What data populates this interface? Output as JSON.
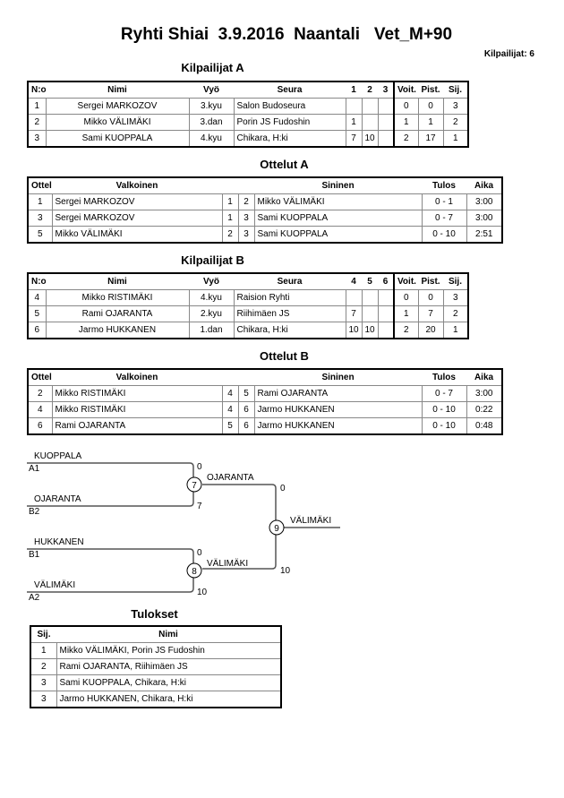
{
  "title": "Ryhti Shiai  3.9.2016  Naantali   Vet_M+90",
  "competitors_count": "Kilpailijat: 6",
  "pool_a": {
    "title": "Kilpailijat A",
    "headers": [
      "N:o",
      "Nimi",
      "Vyö",
      "Seura",
      "1",
      "2",
      "3",
      "Voit.",
      "Pist.",
      "Sij."
    ],
    "rows": [
      [
        "1",
        "Sergei MARKOZOV",
        "3.kyu",
        "Salon Budoseura",
        "",
        "",
        "",
        "0",
        "0",
        "3"
      ],
      [
        "2",
        "Mikko VÄLIMÄKI",
        "3.dan",
        "Porin JS Fudoshin",
        "1",
        "",
        "",
        "1",
        "1",
        "2"
      ],
      [
        "3",
        "Sami KUOPPALA",
        "4.kyu",
        "Chikara, H:ki",
        "7",
        "10",
        "",
        "2",
        "17",
        "1"
      ]
    ]
  },
  "matches_a": {
    "title": "Ottelut A",
    "headers": [
      "Ottelu",
      "Valkoinen",
      "",
      "",
      "Sininen",
      "Tulos",
      "Aika"
    ],
    "rows": [
      [
        "1",
        "Sergei MARKOZOV",
        "1",
        "2",
        "Mikko VÄLIMÄKI",
        "0 - 1",
        "3:00"
      ],
      [
        "3",
        "Sergei MARKOZOV",
        "1",
        "3",
        "Sami KUOPPALA",
        "0 - 7",
        "3:00"
      ],
      [
        "5",
        "Mikko VÄLIMÄKI",
        "2",
        "3",
        "Sami KUOPPALA",
        "0 - 10",
        "2:51"
      ]
    ]
  },
  "pool_b": {
    "title": "Kilpailijat B",
    "headers": [
      "N:o",
      "Nimi",
      "Vyö",
      "Seura",
      "4",
      "5",
      "6",
      "Voit.",
      "Pist.",
      "Sij."
    ],
    "rows": [
      [
        "4",
        "Mikko RISTIMÄKI",
        "4.kyu",
        "Raision Ryhti",
        "",
        "",
        "",
        "0",
        "0",
        "3"
      ],
      [
        "5",
        "Rami OJARANTA",
        "2.kyu",
        "Riihimäen JS",
        "7",
        "",
        "",
        "1",
        "7",
        "2"
      ],
      [
        "6",
        "Jarmo HUKKANEN",
        "1.dan",
        "Chikara, H:ki",
        "10",
        "10",
        "",
        "2",
        "20",
        "1"
      ]
    ]
  },
  "matches_b": {
    "title": "Ottelut B",
    "headers": [
      "Ottelu",
      "Valkoinen",
      "",
      "",
      "Sininen",
      "Tulos",
      "Aika"
    ],
    "rows": [
      [
        "2",
        "Mikko RISTIMÄKI",
        "4",
        "5",
        "Rami OJARANTA",
        "0 - 7",
        "3:00"
      ],
      [
        "4",
        "Mikko RISTIMÄKI",
        "4",
        "6",
        "Jarmo HUKKANEN",
        "0 - 10",
        "0:22"
      ],
      [
        "6",
        "Rami OJARANTA",
        "5",
        "6",
        "Jarmo HUKKANEN",
        "0 - 10",
        "0:48"
      ]
    ]
  },
  "bracket": {
    "s1_name": "KUOPPALA",
    "s1_seed": "A1",
    "s1_score": "0",
    "s2_name": "OJARANTA",
    "s2_seed": "B2",
    "s2_score": "7",
    "s3_name": "HUKKANEN",
    "s3_seed": "B1",
    "s3_score": "0",
    "s4_name": "VÄLIMÄKI",
    "s4_seed": "A2",
    "s4_score": "10",
    "m7": "7",
    "m8": "8",
    "m9": "9",
    "w7": "OJARANTA",
    "w7_score": "0",
    "w8": "VÄLIMÄKI",
    "w8_score": "10",
    "final_winner": "VÄLIMÄKI"
  },
  "results": {
    "title": "Tulokset",
    "headers": [
      "Sij.",
      "Nimi"
    ],
    "rows": [
      [
        "1",
        "Mikko VÄLIMÄKI, Porin JS Fudoshin"
      ],
      [
        "2",
        "Rami OJARANTA, Riihimäen JS"
      ],
      [
        "3",
        "Sami KUOPPALA, Chikara, H:ki"
      ],
      [
        "3",
        "Jarmo HUKKANEN, Chikara, H:ki"
      ]
    ]
  }
}
